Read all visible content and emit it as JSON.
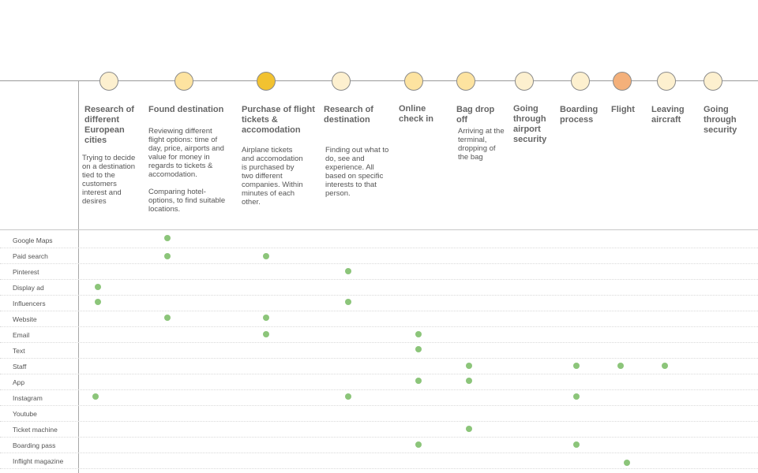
{
  "stages": [
    {
      "id": "research",
      "title": "Research of different European cities",
      "descriptions": [
        "Trying to decide on a destination tied to the customers interest and desires"
      ],
      "color": "#fdf0cf"
    },
    {
      "id": "found",
      "title": "Found destination",
      "descriptions": [
        "Reviewing different flight options: time of day, price, airports and value for money in regards to tickets & accomodation.",
        "Comparing hotel-options, to find suitable locations."
      ],
      "color": "#fde3a0"
    },
    {
      "id": "purchase",
      "title": "Purchase of flight tickets & accomodation",
      "descriptions": [
        "Airplane tickets and accomodation is purchased by two different companies. Within minutes of each other."
      ],
      "color": "#f2c230"
    },
    {
      "id": "research-dest",
      "title": "Research of destination",
      "descriptions": [
        "Finding out what to do, see and experience. All based on specific interests to that person."
      ],
      "color": "#fdf0cf"
    },
    {
      "id": "checkin",
      "title": "Online check in",
      "descriptions": [],
      "color": "#fde3a0"
    },
    {
      "id": "bagdrop",
      "title": "Bag drop off",
      "descriptions": [
        "Arriving at the terminal, dropping of the bag"
      ],
      "color": "#fde3a0"
    },
    {
      "id": "security",
      "title": "Going through airport security",
      "descriptions": [],
      "color": "#fdf0cf"
    },
    {
      "id": "boarding",
      "title": "Boarding process",
      "descriptions": [],
      "color": "#fdf0cf"
    },
    {
      "id": "flight",
      "title": "Flight",
      "descriptions": [],
      "color": "#f4b07a"
    },
    {
      "id": "leaving",
      "title": "Leaving aircraft",
      "descriptions": [],
      "color": "#fdf0cf"
    },
    {
      "id": "security2",
      "title": "Going through security",
      "descriptions": [],
      "color": "#fdf0cf"
    }
  ],
  "channels": [
    {
      "label": "Google Maps",
      "stages": [
        "found"
      ]
    },
    {
      "label": "Paid search",
      "stages": [
        "found",
        "purchase"
      ]
    },
    {
      "label": "Pinterest",
      "stages": [
        "research-dest"
      ]
    },
    {
      "label": "Display ad",
      "stages": [
        "research"
      ]
    },
    {
      "label": "Influencers",
      "stages": [
        "research",
        "research-dest"
      ]
    },
    {
      "label": "Website",
      "stages": [
        "found",
        "purchase"
      ]
    },
    {
      "label": "Email",
      "stages": [
        "purchase",
        "checkin"
      ]
    },
    {
      "label": "Text",
      "stages": [
        "checkin"
      ]
    },
    {
      "label": "Staff",
      "stages": [
        "bagdrop",
        "boarding",
        "flight",
        "leaving"
      ]
    },
    {
      "label": "App",
      "stages": [
        "checkin",
        "bagdrop"
      ]
    },
    {
      "label": "Instagram",
      "stages": [
        "research",
        "research-dest",
        "boarding"
      ]
    },
    {
      "label": "Youtube",
      "stages": []
    },
    {
      "label": "Ticket machine",
      "stages": [
        "bagdrop"
      ]
    },
    {
      "label": "Boarding pass",
      "stages": [
        "checkin",
        "boarding"
      ]
    },
    {
      "label": "Inflight magazine",
      "stages": [
        "flight"
      ]
    }
  ],
  "colors": {
    "dot": "#8cc57a",
    "timeline": "#9a9a9a"
  }
}
